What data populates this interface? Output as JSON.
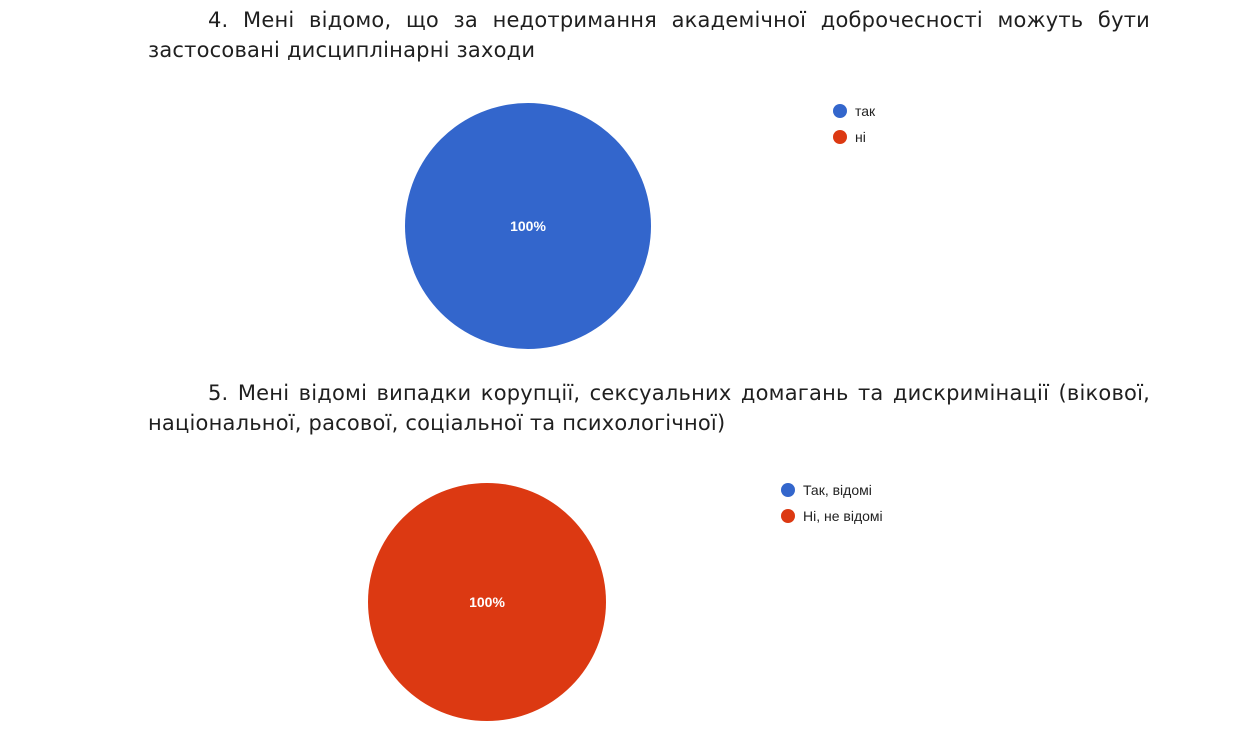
{
  "questions": [
    {
      "text": "4. Мені відомо, що за недотримання академічної доброчесності можуть бути застосовані дисциплінарні заходи"
    },
    {
      "text": "5. Мені відомі випадки корупції, сексуальних домагань та дискримінації (вікової, національної, расової, соціальної та психологічної)"
    }
  ],
  "chart_data": [
    {
      "type": "pie",
      "categories": [
        "так",
        "ні"
      ],
      "values": [
        100,
        0
      ],
      "colors": [
        "#3366cc",
        "#dc3912"
      ],
      "slice_labels": [
        "100%",
        ""
      ],
      "legend_position": "right"
    },
    {
      "type": "pie",
      "categories": [
        "Так, відомі",
        "Ні, не відомі"
      ],
      "values": [
        0,
        100
      ],
      "colors": [
        "#3366cc",
        "#dc3912"
      ],
      "slice_labels": [
        "",
        "100%"
      ],
      "legend_position": "right"
    }
  ]
}
